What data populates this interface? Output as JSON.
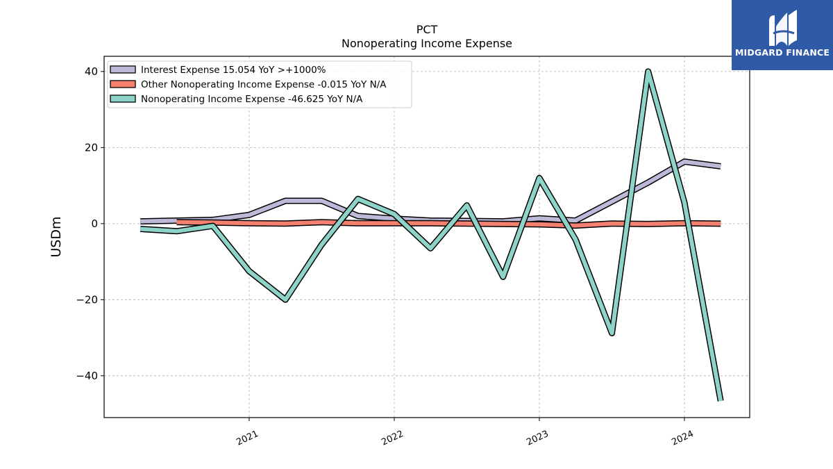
{
  "chart_data": {
    "type": "line",
    "title": "PCT",
    "subtitle": "Nonoperating Income Expense",
    "ylabel": "USDm",
    "xlabel": "",
    "ylim": [
      -51,
      44
    ],
    "xlim": [
      2020.0,
      2024.45
    ],
    "yticks": [
      -40,
      -20,
      0,
      20,
      40
    ],
    "xticks": [
      {
        "value": 2021.0,
        "label": "2021"
      },
      {
        "value": 2022.0,
        "label": "2022"
      },
      {
        "value": 2023.0,
        "label": "2023"
      },
      {
        "value": 2024.0,
        "label": "2024"
      }
    ],
    "grid": true,
    "legend_position": "top-left",
    "series": [
      {
        "name": "Interest Expense  15.054 YoY >+1000%",
        "color": "#bcb9d9",
        "x": [
          2020.25,
          2020.5,
          2020.75,
          2021.0,
          2021.25,
          2021.5,
          2021.75,
          2022.0,
          2022.25,
          2022.5,
          2022.75,
          2023.0,
          2023.25,
          2023.5,
          2023.75,
          2024.0,
          2024.25
        ],
        "values": [
          0.6,
          0.8,
          1.0,
          2.3,
          6.0,
          6.0,
          2.0,
          1.3,
          0.8,
          0.7,
          0.6,
          1.4,
          0.8,
          5.8,
          10.8,
          16.3,
          15.054
        ]
      },
      {
        "name": "Other Nonoperating Income Expense  -0.015 YoY N/A",
        "color": "#f48070",
        "x": [
          2020.5,
          2020.75,
          2021.0,
          2021.25,
          2021.5,
          2021.75,
          2022.0,
          2022.25,
          2022.5,
          2022.75,
          2023.0,
          2023.25,
          2023.5,
          2023.75,
          2024.0,
          2024.25
        ],
        "values": [
          0.4,
          0.3,
          0.1,
          0.0,
          0.4,
          0.1,
          0.1,
          0.1,
          0.0,
          -0.1,
          -0.2,
          -0.5,
          0.0,
          -0.1,
          0.1,
          -0.015
        ]
      },
      {
        "name": "Nonoperating Income Expense  -46.625 YoY N/A",
        "color": "#8dd3c7",
        "x": [
          2020.25,
          2020.5,
          2020.75,
          2021.0,
          2021.25,
          2021.5,
          2021.75,
          2022.0,
          2022.25,
          2022.5,
          2022.75,
          2023.0,
          2023.25,
          2023.5,
          2023.75,
          2024.0,
          2024.25
        ],
        "values": [
          -1.4,
          -2.0,
          -0.6,
          -12.5,
          -20.0,
          -5.5,
          6.5,
          2.5,
          -6.5,
          4.8,
          -14.0,
          12.0,
          -4.2,
          -28.8,
          40.0,
          5.5,
          -46.625
        ]
      }
    ]
  },
  "logo": {
    "text": "MIDGARD FINANCE",
    "background": "#2e5aa8"
  }
}
